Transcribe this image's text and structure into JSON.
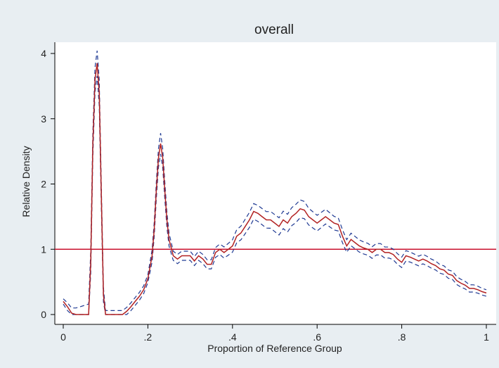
{
  "chart_data": {
    "type": "line",
    "title": "overall",
    "xlabel": "Proportion of Reference Group",
    "ylabel": "Relative Density",
    "xlim": [
      0,
      1
    ],
    "ylim": [
      0,
      4.1
    ],
    "x_ticks": [
      0,
      0.2,
      0.4,
      0.6,
      0.8,
      1
    ],
    "x_tick_labels": [
      "0",
      ".2",
      ".4",
      ".6",
      ".8",
      "1"
    ],
    "y_ticks": [
      0,
      1,
      2,
      3,
      4
    ],
    "y_tick_labels": [
      "0",
      "1",
      "2",
      "3",
      "4"
    ],
    "grid": false,
    "colors": {
      "estimate": "#b22222",
      "ci": "#1f3a93",
      "reference": "#c8102e",
      "plot_background": "#ffffff",
      "outer_background": "#e8eef2"
    },
    "reference_line": {
      "y": 1
    },
    "ci_halfwidth": [
      [
        0,
        0.04
      ],
      [
        0.07,
        0.18
      ],
      [
        0.085,
        0.2
      ],
      [
        0.1,
        0.06
      ],
      [
        0.2,
        0.06
      ],
      [
        0.23,
        0.16
      ],
      [
        0.26,
        0.07
      ],
      [
        0.35,
        0.07
      ],
      [
        0.45,
        0.12
      ],
      [
        0.55,
        0.14
      ],
      [
        0.65,
        0.1
      ],
      [
        0.8,
        0.08
      ],
      [
        1,
        0.05
      ]
    ],
    "series": [
      {
        "style": "solid",
        "x": [
          0,
          0.01,
          0.02,
          0.03,
          0.04,
          0.05,
          0.055,
          0.06,
          0.065,
          0.07,
          0.075,
          0.08,
          0.085,
          0.09,
          0.095,
          0.1,
          0.105,
          0.11,
          0.12,
          0.13,
          0.14,
          0.15,
          0.16,
          0.17,
          0.18,
          0.19,
          0.2,
          0.21,
          0.215,
          0.22,
          0.225,
          0.23,
          0.235,
          0.24,
          0.245,
          0.25,
          0.26,
          0.27,
          0.28,
          0.29,
          0.3,
          0.31,
          0.32,
          0.33,
          0.34,
          0.35,
          0.36,
          0.37,
          0.38,
          0.39,
          0.4,
          0.41,
          0.42,
          0.43,
          0.44,
          0.45,
          0.46,
          0.47,
          0.48,
          0.49,
          0.5,
          0.51,
          0.52,
          0.53,
          0.54,
          0.55,
          0.56,
          0.57,
          0.58,
          0.59,
          0.6,
          0.61,
          0.62,
          0.63,
          0.64,
          0.65,
          0.66,
          0.67,
          0.68,
          0.69,
          0.7,
          0.71,
          0.72,
          0.73,
          0.74,
          0.75,
          0.76,
          0.77,
          0.78,
          0.79,
          0.8,
          0.81,
          0.82,
          0.83,
          0.84,
          0.85,
          0.86,
          0.87,
          0.88,
          0.89,
          0.9,
          0.91,
          0.92,
          0.93,
          0.94,
          0.95,
          0.96,
          0.97,
          0.98,
          0.99,
          1
        ],
        "y": [
          0.2,
          0.12,
          0.02,
          0,
          0,
          0,
          0,
          0,
          0.8,
          2.6,
          3.6,
          3.85,
          3.4,
          1.8,
          0.3,
          0,
          0,
          0,
          0,
          0,
          0,
          0.05,
          0.12,
          0.2,
          0.28,
          0.38,
          0.55,
          0.9,
          1.3,
          1.9,
          2.4,
          2.62,
          2.4,
          1.9,
          1.45,
          1.15,
          0.9,
          0.85,
          0.9,
          0.9,
          0.9,
          0.82,
          0.9,
          0.85,
          0.77,
          0.77,
          0.95,
          1.0,
          0.95,
          1.0,
          1.05,
          1.2,
          1.25,
          1.35,
          1.45,
          1.58,
          1.55,
          1.5,
          1.45,
          1.45,
          1.4,
          1.35,
          1.45,
          1.4,
          1.5,
          1.55,
          1.62,
          1.6,
          1.5,
          1.45,
          1.4,
          1.45,
          1.5,
          1.45,
          1.4,
          1.38,
          1.2,
          1.05,
          1.15,
          1.1,
          1.05,
          1.02,
          1.0,
          0.95,
          1.0,
          1.0,
          0.95,
          0.95,
          0.92,
          0.85,
          0.8,
          0.9,
          0.88,
          0.85,
          0.82,
          0.85,
          0.82,
          0.78,
          0.75,
          0.7,
          0.68,
          0.62,
          0.6,
          0.52,
          0.48,
          0.45,
          0.4,
          0.4,
          0.38,
          0.35,
          0.33
        ]
      }
    ]
  }
}
